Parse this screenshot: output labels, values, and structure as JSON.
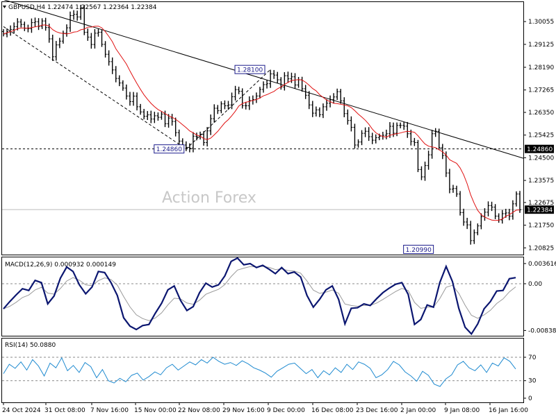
{
  "chart_data": [
    {
      "type": "candlestick",
      "panel": "price",
      "header": {
        "symbol": "GBPUSD,H4",
        "open": "1.22474",
        "high": "1.22567",
        "low": "1.22364",
        "close": "1.22384"
      },
      "watermark": "Action Forex",
      "ylim": [
        1.2055,
        1.3085
      ],
      "ytick_labels": [
        "1.30055",
        "1.29125",
        "1.28190",
        "1.27265",
        "1.26350",
        "1.25425",
        "1.24500",
        "1.23575",
        "1.22675",
        "1.21750",
        "1.20825"
      ],
      "ytick_values": [
        1.30055,
        1.29125,
        1.2819,
        1.27265,
        1.2635,
        1.25425,
        1.245,
        1.23575,
        1.22675,
        1.2175,
        1.20825
      ],
      "horizontal_line": {
        "value": 1.2486,
        "label": "1.24860",
        "style": "dashed"
      },
      "current_price": {
        "value": 1.22384,
        "label": "1.22384"
      },
      "annotations": [
        {
          "label": "1.28100",
          "value": 1.281
        },
        {
          "label": "1.24860",
          "value": 1.2486
        },
        {
          "label": "1.20990",
          "value": 1.2099
        }
      ],
      "trendlines": [
        {
          "style": "solid",
          "from_bar": 0,
          "from": 1.3095,
          "to_bar": 147,
          "to": 1.2448
        },
        {
          "style": "dashed",
          "from_bar": 0,
          "from": 1.2985,
          "to_bar": 52,
          "to": 1.2486
        },
        {
          "style": "dashed",
          "from_bar": 52,
          "from": 1.2486,
          "to_bar": 76,
          "to": 1.281
        }
      ],
      "close_anchors": [
        [
          0,
          1.2955
        ],
        [
          3,
          1.2985
        ],
        [
          6,
          1.2978
        ],
        [
          9,
          1.3005
        ],
        [
          11,
          1.3008
        ],
        [
          13,
          1.2935
        ],
        [
          14,
          1.2862
        ],
        [
          17,
          1.2958
        ],
        [
          20,
          1.3035
        ],
        [
          22,
          1.3062
        ],
        [
          23,
          1.2962
        ],
        [
          25,
          1.2912
        ],
        [
          27,
          1.2962
        ],
        [
          30,
          1.2842
        ],
        [
          33,
          1.2755
        ],
        [
          35,
          1.2702
        ],
        [
          38,
          1.2658
        ],
        [
          41,
          1.2625
        ],
        [
          44,
          1.2615
        ],
        [
          47,
          1.2612
        ],
        [
          50,
          1.2518
        ],
        [
          52,
          1.2492
        ],
        [
          54,
          1.2538
        ],
        [
          57,
          1.2512
        ],
        [
          60,
          1.2652
        ],
        [
          63,
          1.2662
        ],
        [
          66,
          1.2728
        ],
        [
          69,
          1.2662
        ],
        [
          72,
          1.2702
        ],
        [
          75,
          1.2752
        ],
        [
          76,
          1.2792
        ],
        [
          78,
          1.2768
        ],
        [
          81,
          1.2772
        ],
        [
          84,
          1.2768
        ],
        [
          86,
          1.2705
        ],
        [
          88,
          1.2632
        ],
        [
          91,
          1.2658
        ],
        [
          94,
          1.2698
        ],
        [
          96,
          1.2682
        ],
        [
          98,
          1.2602
        ],
        [
          100,
          1.2502
        ],
        [
          103,
          1.2558
        ],
        [
          106,
          1.2532
        ],
        [
          109,
          1.2548
        ],
        [
          112,
          1.2582
        ],
        [
          115,
          1.2548
        ],
        [
          117,
          1.2512
        ],
        [
          118,
          1.2402
        ],
        [
          119,
          1.2372
        ],
        [
          121,
          1.2462
        ],
        [
          122,
          1.2548
        ],
        [
          123,
          1.2558
        ],
        [
          124,
          1.2492
        ],
        [
          126,
          1.2388
        ],
        [
          127,
          1.2322
        ],
        [
          129,
          1.2302
        ],
        [
          131,
          1.2188
        ],
        [
          133,
          1.2112
        ],
        [
          135,
          1.2172
        ],
        [
          137,
          1.2228
        ],
        [
          138,
          1.2255
        ],
        [
          140,
          1.2212
        ],
        [
          142,
          1.2222
        ],
        [
          144,
          1.2212
        ],
        [
          145,
          1.2262
        ],
        [
          146,
          1.2302
        ],
        [
          147,
          1.2238
        ]
      ],
      "moving_average_color": "#e01010",
      "bar_color": "#000000"
    },
    {
      "type": "line",
      "panel": "macd",
      "title": "MACD(12,26,9) 0.000932 0.000149",
      "ytick_labels": [
        "0.003616",
        "0.00",
        "-0.00838"
      ],
      "ylim": [
        -0.0092,
        0.0046
      ],
      "zero_line": 0,
      "series": [
        {
          "name": "MACD",
          "color": "#0b1670",
          "values": [
            -0.0045,
            -0.0032,
            -0.002,
            -0.0009,
            -0.0012,
            0.0006,
            0.0002,
            -0.0036,
            -0.0022,
            0.001,
            0.003,
            0.0022,
            -0.0002,
            -0.0018,
            -0.0006,
            0.0022,
            0.002,
            0.0002,
            -0.0021,
            -0.0061,
            -0.0076,
            -0.0082,
            -0.0075,
            -0.0073,
            -0.0053,
            -0.0035,
            -0.0011,
            -0.0004,
            -0.003,
            -0.0048,
            -0.0041,
            -0.0016,
            0.0001,
            -0.0006,
            -0.0002,
            0.0014,
            0.004,
            0.0046,
            0.0034,
            0.0036,
            0.0029,
            0.0033,
            0.0026,
            0.0018,
            0.0029,
            0.0018,
            0.0021,
            0.0012,
            -0.0021,
            -0.0042,
            -0.0028,
            -0.0011,
            -0.0004,
            -0.0028,
            -0.0072,
            -0.0044,
            -0.0043,
            -0.0036,
            -0.0039,
            -0.0027,
            -0.0016,
            -0.0008,
            -0.0001,
            0.0002,
            -0.0019,
            -0.0073,
            -0.0064,
            -0.0038,
            -0.0042,
            0.0002,
            0.0031,
            0.0004,
            -0.0044,
            -0.0078,
            -0.009,
            -0.0072,
            -0.0045,
            -0.0032,
            -0.0013,
            -0.0012,
            0.0009,
            0.0011
          ]
        }
      ]
    },
    {
      "type": "line",
      "panel": "rsi",
      "title": "RSI(14) 50.0880",
      "ytick_labels": [
        "70",
        "30",
        "0"
      ],
      "ylim": [
        0,
        100
      ],
      "levels": [
        70,
        30
      ],
      "series": [
        {
          "name": "RSI(14)",
          "color": "#1e8ad0",
          "values": [
            42,
            58,
            51,
            62,
            48,
            66,
            55,
            38,
            60,
            52,
            69,
            47,
            56,
            44,
            61,
            54,
            35,
            49,
            30,
            26,
            34,
            28,
            39,
            43,
            31,
            37,
            45,
            40,
            52,
            58,
            48,
            55,
            62,
            57,
            66,
            60,
            70,
            63,
            58,
            61,
            56,
            64,
            59,
            52,
            48,
            43,
            36,
            46,
            52,
            58,
            60,
            51,
            42,
            49,
            35,
            47,
            40,
            52,
            44,
            58,
            49,
            62,
            58,
            51,
            35,
            40,
            49,
            63,
            57,
            45,
            38,
            29,
            46,
            39,
            24,
            20,
            33,
            40,
            57,
            63,
            52,
            47,
            57,
            44,
            60,
            55,
            69,
            63,
            50
          ]
        }
      ]
    },
    {
      "type": "axis",
      "panel": "x-axis",
      "labels": [
        "24 Oct 2024",
        "31 Oct 08:00",
        "7 Nov 16:00",
        "15 Nov 00:00",
        "22 Nov 08:00",
        "29 Nov 16:00",
        "9 Dec 00:00",
        "16 Dec 08:00",
        "23 Dec 16:00",
        "2 Jan 00:00",
        "9 Jan 08:00",
        "16 Jan 16:00"
      ]
    }
  ]
}
